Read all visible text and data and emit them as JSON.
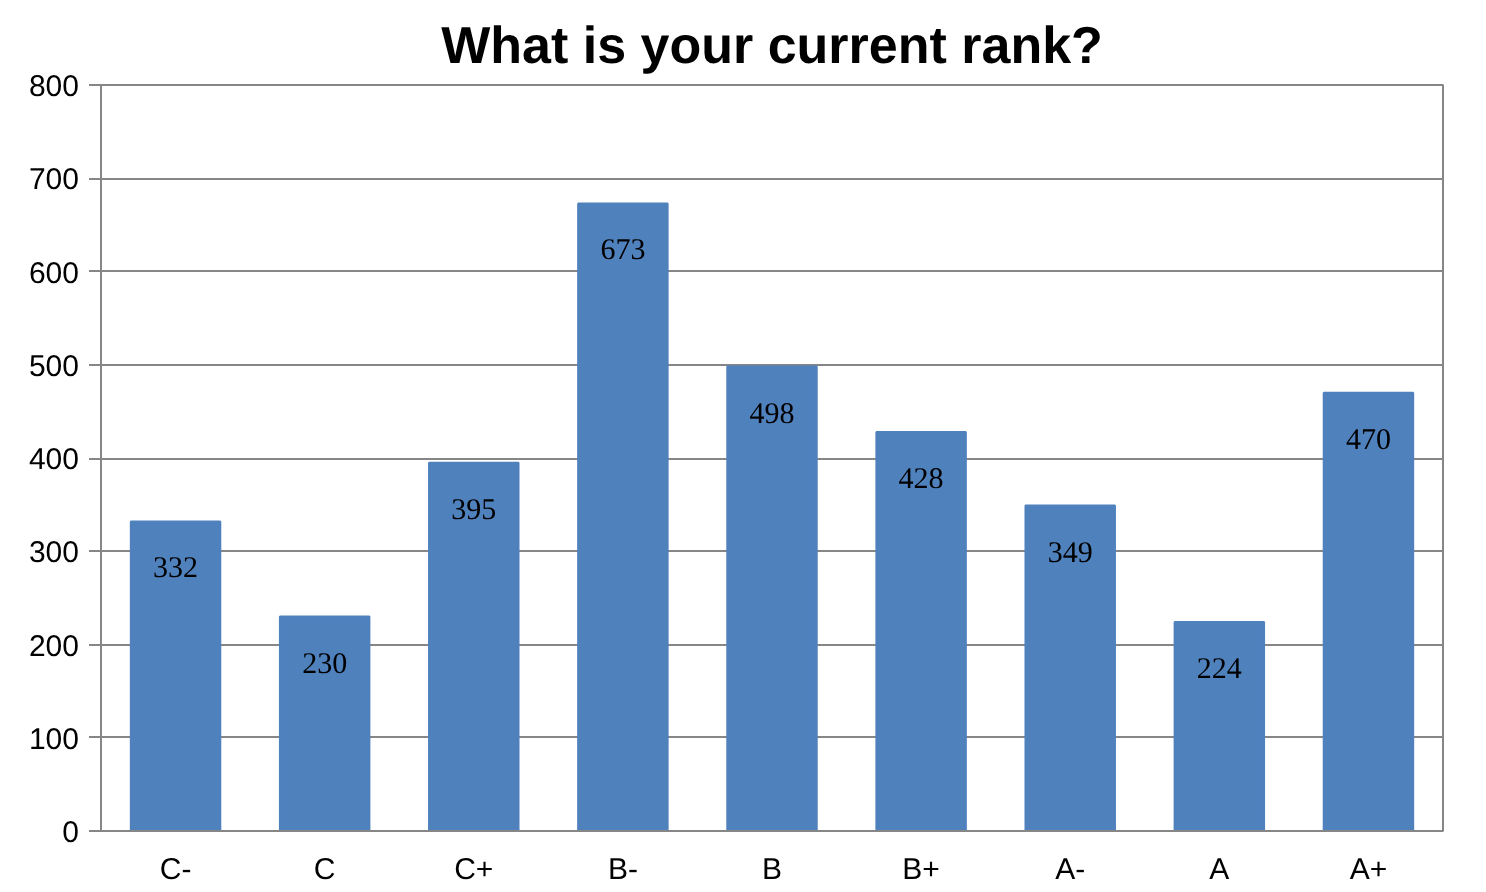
{
  "chart_data": {
    "type": "bar",
    "title": "What is your current rank?",
    "categories": [
      "C-",
      "C",
      "C+",
      "B-",
      "B",
      "B+",
      "A-",
      "A",
      "A+"
    ],
    "values": [
      332,
      230,
      395,
      673,
      498,
      428,
      349,
      224,
      470
    ],
    "color": "#4f81bd",
    "ylim": [
      0,
      800
    ],
    "yticks": [
      0,
      100,
      200,
      300,
      400,
      500,
      600,
      700,
      800
    ],
    "grid": "y",
    "data_labels": true
  }
}
